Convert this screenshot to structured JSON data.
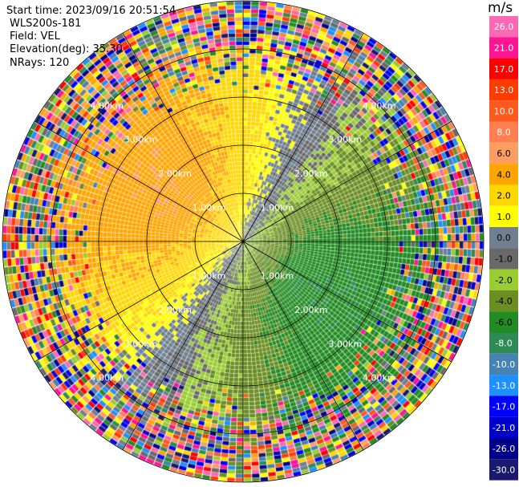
{
  "header": {
    "start_time": "Start time: 2023/09/16 20:51:54",
    "instrument": "WLS200s-181",
    "field": "Field: VEL",
    "elevation": "Elevation(deg): 35.30",
    "nrays": "NRays: 120"
  },
  "chart_data": {
    "type": "heatmap",
    "projection": "ppi-polar",
    "colorbar": {
      "unit": "m/s",
      "ticks": [
        "26.0",
        "21.0",
        "17.0",
        "13.0",
        "10.0",
        "8.0",
        "6.0",
        "4.0",
        "2.0",
        "1.0",
        "0.0",
        "-1.0",
        "-2.0",
        "-4.0",
        "-6.0",
        "-8.0",
        "-10.0",
        "-13.0",
        "-17.0",
        "-21.0",
        "-26.0",
        "-30.0"
      ],
      "colors": [
        "#ff69b4",
        "#ff1493",
        "#ff0000",
        "#ff3b00",
        "#ff5a1e",
        "#ff7f50",
        "#ff9e60",
        "#ffa500",
        "#ffd700",
        "#ffff00",
        "#708090",
        "#696969",
        "#9acd32",
        "#6b8e23",
        "#228b22",
        "#2e8b57",
        "#4682b4",
        "#1e90ff",
        "#0000ff",
        "#0000cd",
        "#00008b",
        "#191970"
      ]
    },
    "range_rings": [
      {
        "label": "1.00km",
        "range_km": 1
      },
      {
        "label": "2.00km",
        "range_km": 2
      },
      {
        "label": "3.00km",
        "range_km": 3
      },
      {
        "label": "4.00km",
        "range_km": 4
      }
    ],
    "azimuth_line_step_deg": 30,
    "max_range_km": 5.0,
    "nrays": 120
  }
}
